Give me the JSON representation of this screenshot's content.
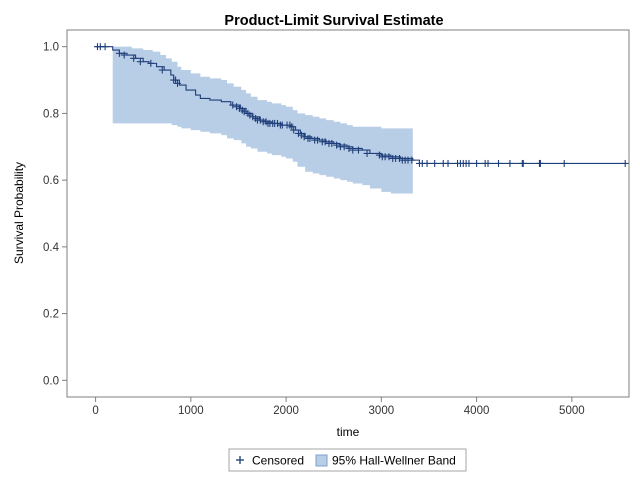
{
  "chart_data": {
    "type": "line",
    "title": "Product-Limit Survival Estimate",
    "xlabel": "time",
    "ylabel": "Survival Probability",
    "xlim": [
      -300,
      5600
    ],
    "ylim": [
      -0.05,
      1.05
    ],
    "xticks": [
      0,
      1000,
      2000,
      3000,
      4000,
      5000
    ],
    "yticks": [
      0.0,
      0.2,
      0.4,
      0.6,
      0.8,
      1.0
    ],
    "xtick_labels": [
      "0",
      "1000",
      "2000",
      "3000",
      "4000",
      "5000"
    ],
    "ytick_labels": [
      "0.0",
      "0.2",
      "0.4",
      "0.6",
      "0.8",
      "1.0"
    ],
    "grid": false,
    "legend_position": "bottom",
    "legend": {
      "censored_label": "Censored",
      "band_label": "95% Hall-Wellner Band"
    },
    "colors": {
      "line": "#1f3f7a",
      "band_fill": "#b8cde6",
      "band_stroke": "#7f9fcc",
      "frame": "#7f7f7f"
    },
    "series": [
      {
        "step": [
          [
            0,
            1.0
          ],
          [
            180,
            0.99
          ],
          [
            250,
            0.98
          ],
          [
            330,
            0.975
          ],
          [
            420,
            0.965
          ],
          [
            500,
            0.955
          ],
          [
            560,
            0.95
          ],
          [
            640,
            0.94
          ],
          [
            720,
            0.93
          ],
          [
            790,
            0.915
          ],
          [
            820,
            0.9
          ],
          [
            880,
            0.885
          ],
          [
            950,
            0.87
          ],
          [
            1050,
            0.855
          ],
          [
            1100,
            0.845
          ],
          [
            1200,
            0.84
          ],
          [
            1320,
            0.835
          ],
          [
            1420,
            0.825
          ],
          [
            1520,
            0.815
          ],
          [
            1580,
            0.8
          ],
          [
            1650,
            0.79
          ],
          [
            1720,
            0.78
          ],
          [
            1780,
            0.775
          ],
          [
            1850,
            0.77
          ],
          [
            1950,
            0.765
          ],
          [
            2050,
            0.76
          ],
          [
            2100,
            0.75
          ],
          [
            2150,
            0.74
          ],
          [
            2200,
            0.73
          ],
          [
            2270,
            0.725
          ],
          [
            2350,
            0.72
          ],
          [
            2420,
            0.715
          ],
          [
            2500,
            0.71
          ],
          [
            2560,
            0.705
          ],
          [
            2640,
            0.7
          ],
          [
            2700,
            0.695
          ],
          [
            2800,
            0.69
          ],
          [
            2880,
            0.68
          ],
          [
            3000,
            0.675
          ],
          [
            3100,
            0.67
          ],
          [
            3200,
            0.665
          ],
          [
            3330,
            0.66
          ],
          [
            3400,
            0.65
          ],
          [
            5560,
            0.65
          ]
        ],
        "band": [
          [
            180,
            0.77,
            1.0
          ],
          [
            380,
            0.77,
            0.995
          ],
          [
            500,
            0.77,
            0.99
          ],
          [
            600,
            0.77,
            0.985
          ],
          [
            680,
            0.77,
            0.975
          ],
          [
            740,
            0.77,
            0.965
          ],
          [
            800,
            0.765,
            0.955
          ],
          [
            860,
            0.76,
            0.94
          ],
          [
            900,
            0.755,
            0.93
          ],
          [
            1000,
            0.75,
            0.92
          ],
          [
            1100,
            0.745,
            0.91
          ],
          [
            1200,
            0.74,
            0.905
          ],
          [
            1320,
            0.735,
            0.9
          ],
          [
            1380,
            0.725,
            0.89
          ],
          [
            1450,
            0.72,
            0.88
          ],
          [
            1530,
            0.71,
            0.87
          ],
          [
            1580,
            0.7,
            0.86
          ],
          [
            1630,
            0.695,
            0.85
          ],
          [
            1700,
            0.685,
            0.84
          ],
          [
            1800,
            0.68,
            0.835
          ],
          [
            1850,
            0.675,
            0.83
          ],
          [
            1950,
            0.67,
            0.825
          ],
          [
            2000,
            0.665,
            0.82
          ],
          [
            2070,
            0.655,
            0.81
          ],
          [
            2120,
            0.64,
            0.8
          ],
          [
            2200,
            0.625,
            0.795
          ],
          [
            2280,
            0.62,
            0.79
          ],
          [
            2350,
            0.615,
            0.785
          ],
          [
            2420,
            0.61,
            0.78
          ],
          [
            2500,
            0.605,
            0.775
          ],
          [
            2570,
            0.6,
            0.77
          ],
          [
            2640,
            0.595,
            0.765
          ],
          [
            2700,
            0.59,
            0.76
          ],
          [
            2800,
            0.585,
            0.76
          ],
          [
            2880,
            0.575,
            0.76
          ],
          [
            3000,
            0.565,
            0.755
          ],
          [
            3100,
            0.56,
            0.755
          ],
          [
            3330,
            0.555,
            0.755
          ]
        ],
        "censored": [
          [
            20,
            1.0
          ],
          [
            50,
            1.0
          ],
          [
            100,
            1.0
          ],
          [
            250,
            0.98
          ],
          [
            300,
            0.975
          ],
          [
            400,
            0.965
          ],
          [
            470,
            0.955
          ],
          [
            580,
            0.95
          ],
          [
            700,
            0.93
          ],
          [
            820,
            0.9
          ],
          [
            840,
            0.9
          ],
          [
            860,
            0.89
          ],
          [
            1440,
            0.825
          ],
          [
            1480,
            0.82
          ],
          [
            1510,
            0.815
          ],
          [
            1540,
            0.81
          ],
          [
            1560,
            0.805
          ],
          [
            1600,
            0.8
          ],
          [
            1620,
            0.795
          ],
          [
            1650,
            0.79
          ],
          [
            1680,
            0.785
          ],
          [
            1700,
            0.78
          ],
          [
            1730,
            0.78
          ],
          [
            1760,
            0.775
          ],
          [
            1790,
            0.775
          ],
          [
            1810,
            0.77
          ],
          [
            1830,
            0.77
          ],
          [
            1860,
            0.77
          ],
          [
            1880,
            0.77
          ],
          [
            1910,
            0.77
          ],
          [
            1940,
            0.765
          ],
          [
            1960,
            0.765
          ],
          [
            2010,
            0.765
          ],
          [
            2040,
            0.765
          ],
          [
            2060,
            0.76
          ],
          [
            2080,
            0.75
          ],
          [
            2130,
            0.74
          ],
          [
            2160,
            0.735
          ],
          [
            2190,
            0.73
          ],
          [
            2230,
            0.725
          ],
          [
            2250,
            0.725
          ],
          [
            2300,
            0.72
          ],
          [
            2330,
            0.72
          ],
          [
            2380,
            0.715
          ],
          [
            2410,
            0.715
          ],
          [
            2450,
            0.71
          ],
          [
            2480,
            0.71
          ],
          [
            2530,
            0.705
          ],
          [
            2570,
            0.7
          ],
          [
            2610,
            0.7
          ],
          [
            2660,
            0.695
          ],
          [
            2700,
            0.69
          ],
          [
            2760,
            0.69
          ],
          [
            2850,
            0.68
          ],
          [
            2980,
            0.675
          ],
          [
            3010,
            0.67
          ],
          [
            3040,
            0.67
          ],
          [
            3080,
            0.67
          ],
          [
            3120,
            0.665
          ],
          [
            3150,
            0.665
          ],
          [
            3190,
            0.665
          ],
          [
            3220,
            0.66
          ],
          [
            3250,
            0.66
          ],
          [
            3280,
            0.66
          ],
          [
            3320,
            0.66
          ],
          [
            3400,
            0.65
          ],
          [
            3430,
            0.65
          ],
          [
            3480,
            0.65
          ],
          [
            3560,
            0.65
          ],
          [
            3650,
            0.65
          ],
          [
            3700,
            0.65
          ],
          [
            3800,
            0.65
          ],
          [
            3830,
            0.65
          ],
          [
            3860,
            0.65
          ],
          [
            3890,
            0.65
          ],
          [
            3920,
            0.65
          ],
          [
            4000,
            0.65
          ],
          [
            4090,
            0.65
          ],
          [
            4120,
            0.65
          ],
          [
            4230,
            0.65
          ],
          [
            4350,
            0.65
          ],
          [
            4480,
            0.65
          ],
          [
            4490,
            0.65
          ],
          [
            4660,
            0.65
          ],
          [
            4670,
            0.65
          ],
          [
            4920,
            0.65
          ],
          [
            5560,
            0.65
          ]
        ]
      }
    ]
  }
}
